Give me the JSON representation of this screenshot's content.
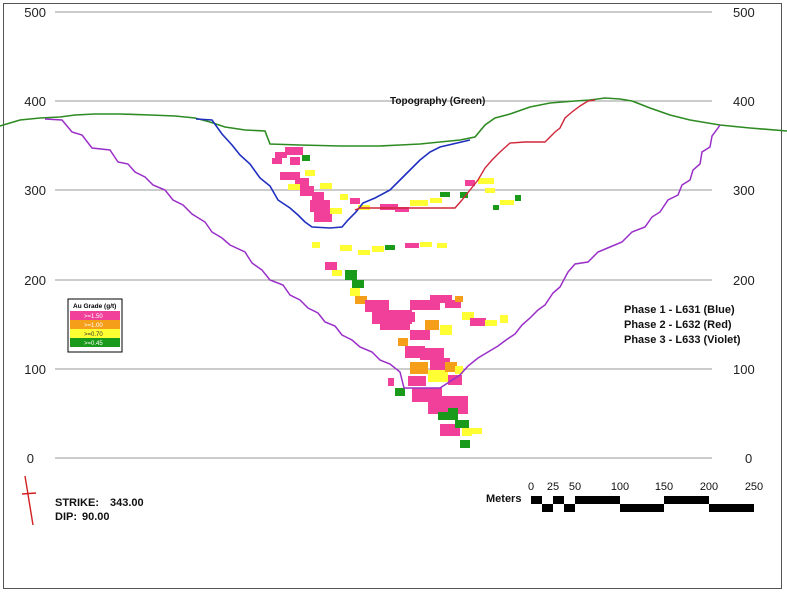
{
  "section": {
    "y_ticks": [
      "500",
      "400",
      "300",
      "200",
      "100",
      "0"
    ],
    "topography_label": "Topography (Green)",
    "phases": [
      {
        "label": "Phase 1 - L631 (Blue)",
        "color": "#1f2fbf"
      },
      {
        "label": "Phase 2 - L632 (Red)",
        "color": "#d0263a"
      },
      {
        "label": "Phase 3 - L633 (Violet)",
        "color": "#9a2fc8"
      }
    ],
    "topography_color": "#2e8b22",
    "legend": {
      "title": "Au Grade (g/t)",
      "items": [
        {
          "label": ">=1.50",
          "color": "#f0409a"
        },
        {
          "label": ">=1.00",
          "color": "#f59e1a"
        },
        {
          "label": ">=0.70",
          "color": "#ffff33"
        },
        {
          "label": ">=0.45",
          "color": "#1a9a1a"
        }
      ]
    },
    "strike_label": "STRIKE:",
    "strike_value": "343.00",
    "dip_label": "DIP:",
    "dip_value": "90.00",
    "scale": {
      "label": "Meters",
      "ticks": [
        "0",
        "25",
        "50",
        "100",
        "150",
        "200",
        "250"
      ]
    }
  }
}
